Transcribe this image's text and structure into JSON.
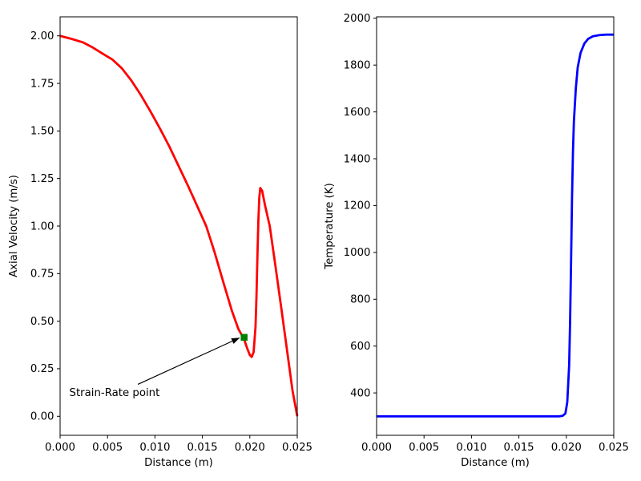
{
  "figure": {
    "background": "#ffffff",
    "text_color": "#000000",
    "spine_color": "#000000"
  },
  "chart_data": [
    {
      "id": "velocity",
      "type": "line",
      "title": "",
      "xlabel": "Distance (m)",
      "ylabel": "Axial Velocity (m/s)",
      "xlim": [
        0,
        0.025
      ],
      "ylim": [
        -0.1,
        2.1
      ],
      "grid": false,
      "legend": "none",
      "xtick_values": [
        0.0,
        0.005,
        0.01,
        0.015,
        0.02,
        0.025
      ],
      "xtick_labels": [
        "0.000",
        "0.005",
        "0.010",
        "0.015",
        "0.020",
        "0.025"
      ],
      "ytick_values": [
        0.0,
        0.25,
        0.5,
        0.75,
        1.0,
        1.25,
        1.5,
        1.75,
        2.0
      ],
      "ytick_labels": [
        "0.00",
        "0.25",
        "0.50",
        "0.75",
        "1.00",
        "1.25",
        "1.50",
        "1.75",
        "2.00"
      ],
      "series": [
        {
          "name": "axial-velocity",
          "color": "#ff0000",
          "linewidth": 2.8,
          "points": [
            [
              0.0,
              2.0
            ],
            [
              0.0012,
              1.984
            ],
            [
              0.0024,
              1.966
            ],
            [
              0.0034,
              1.94
            ],
            [
              0.0045,
              1.906
            ],
            [
              0.0055,
              1.876
            ],
            [
              0.0065,
              1.83
            ],
            [
              0.0075,
              1.766
            ],
            [
              0.0085,
              1.69
            ],
            [
              0.0095,
              1.605
            ],
            [
              0.0105,
              1.515
            ],
            [
              0.0115,
              1.42
            ],
            [
              0.0125,
              1.315
            ],
            [
              0.0135,
              1.21
            ],
            [
              0.0145,
              1.1
            ],
            [
              0.0154,
              1.0
            ],
            [
              0.0163,
              0.86
            ],
            [
              0.0172,
              0.706
            ],
            [
              0.0181,
              0.556
            ],
            [
              0.0188,
              0.458
            ],
            [
              0.0194,
              0.405
            ],
            [
              0.0197,
              0.36
            ],
            [
              0.02,
              0.322
            ],
            [
              0.0202,
              0.312
            ],
            [
              0.0204,
              0.338
            ],
            [
              0.0206,
              0.47
            ],
            [
              0.0207,
              0.63
            ],
            [
              0.0208,
              0.84
            ],
            [
              0.0209,
              1.03
            ],
            [
              0.021,
              1.15
            ],
            [
              0.0211,
              1.2
            ],
            [
              0.0213,
              1.185
            ],
            [
              0.0216,
              1.11
            ],
            [
              0.0221,
              1.0
            ],
            [
              0.0227,
              0.79
            ],
            [
              0.0233,
              0.575
            ],
            [
              0.0239,
              0.355
            ],
            [
              0.0245,
              0.135
            ],
            [
              0.025,
              0.0
            ]
          ]
        }
      ],
      "markers": [
        {
          "name": "strain-rate-point",
          "shape": "square",
          "color": "#008000",
          "size": 8.5,
          "xy": [
            0.0194,
            0.415
          ]
        }
      ],
      "annotations": [
        {
          "name": "strain-rate-annotation",
          "text": "Strain-Rate point",
          "color": "#000000",
          "text_xy": [
            0.001,
            0.098
          ],
          "arrow_from": [
            0.0082,
            0.168
          ],
          "arrow_to": [
            0.0189,
            0.412
          ]
        }
      ]
    },
    {
      "id": "temperature",
      "type": "line",
      "title": "",
      "xlabel": "Distance (m)",
      "ylabel": "Temperature (K)",
      "xlim": [
        0,
        0.025
      ],
      "ylim": [
        219,
        2006
      ],
      "grid": false,
      "legend": "none",
      "xtick_values": [
        0.0,
        0.005,
        0.01,
        0.015,
        0.02,
        0.025
      ],
      "xtick_labels": [
        "0.000",
        "0.005",
        "0.010",
        "0.015",
        "0.020",
        "0.025"
      ],
      "ytick_values": [
        400,
        600,
        800,
        1000,
        1200,
        1400,
        1600,
        1800,
        2000
      ],
      "ytick_labels": [
        "400",
        "600",
        "800",
        "1000",
        "1200",
        "1400",
        "1600",
        "1800",
        "2000"
      ],
      "series": [
        {
          "name": "temperature",
          "color": "#0000ff",
          "linewidth": 2.8,
          "points": [
            [
              0.0,
              300
            ],
            [
              0.004,
              300
            ],
            [
              0.008,
              300
            ],
            [
              0.012,
              300
            ],
            [
              0.016,
              300
            ],
            [
              0.0185,
              300
            ],
            [
              0.0192,
              300
            ],
            [
              0.0196,
              302
            ],
            [
              0.0199,
              312
            ],
            [
              0.0201,
              360
            ],
            [
              0.0203,
              520
            ],
            [
              0.0204,
              710
            ],
            [
              0.0205,
              960
            ],
            [
              0.0206,
              1230
            ],
            [
              0.0207,
              1430
            ],
            [
              0.0208,
              1560
            ],
            [
              0.021,
              1700
            ],
            [
              0.0212,
              1790
            ],
            [
              0.0215,
              1852
            ],
            [
              0.0219,
              1892
            ],
            [
              0.0223,
              1912
            ],
            [
              0.0228,
              1923
            ],
            [
              0.0235,
              1928
            ],
            [
              0.0242,
              1930
            ],
            [
              0.025,
              1930
            ]
          ]
        }
      ],
      "markers": [],
      "annotations": []
    }
  ]
}
